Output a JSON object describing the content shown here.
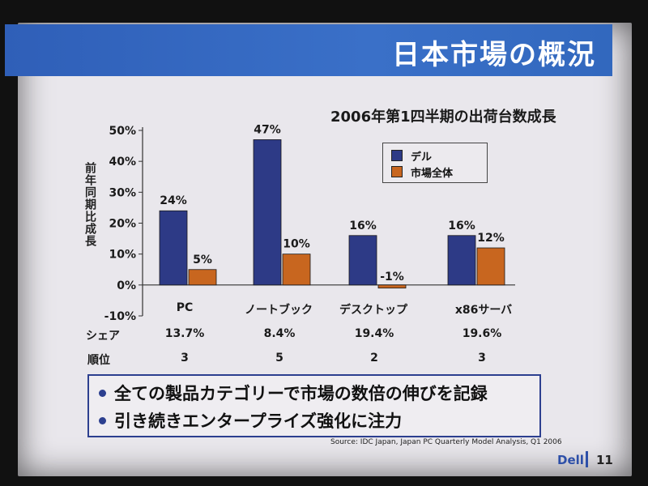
{
  "slide": {
    "title": "日本市場の概況",
    "source": "Source: IDC Japan, Japan PC Quarterly Model Analysis, Q1 2006",
    "logo": "Dell",
    "page_number": "11",
    "bullets": [
      "全ての製品カテゴリーで市場の数倍の伸びを記録",
      "引き続きエンタープライズ強化に注力"
    ],
    "table": {
      "share_label": "シェア",
      "rank_label": "順位",
      "shares": [
        "13.7%",
        "8.4%",
        "19.4%",
        "19.6%"
      ],
      "ranks": [
        "3",
        "5",
        "2",
        "3"
      ]
    }
  },
  "chart_data": {
    "type": "bar",
    "title": "2006年第1四半期の出荷台数成長",
    "ylabel": "前年同期比成長",
    "xlabel": "",
    "categories": [
      "PC",
      "ノートブック",
      "デスクトップ",
      "x86サーバ"
    ],
    "series": [
      {
        "name": "デル",
        "values": [
          24,
          47,
          16,
          16
        ],
        "labels": [
          "24%",
          "47%",
          "16%",
          "16%"
        ],
        "color": "#2d3a86"
      },
      {
        "name": "市場全体",
        "values": [
          5,
          10,
          -1,
          12
        ],
        "labels": [
          "5%",
          "10%",
          "-1%",
          "12%"
        ],
        "color": "#c8661f"
      }
    ],
    "ylim": [
      -10,
      50
    ],
    "yticks": [
      "-10%",
      "0%",
      "10%",
      "20%",
      "30%",
      "40%",
      "50%"
    ],
    "ytick_values": [
      -10,
      0,
      10,
      20,
      30,
      40,
      50
    ],
    "legend": "top-right",
    "grid": false
  }
}
